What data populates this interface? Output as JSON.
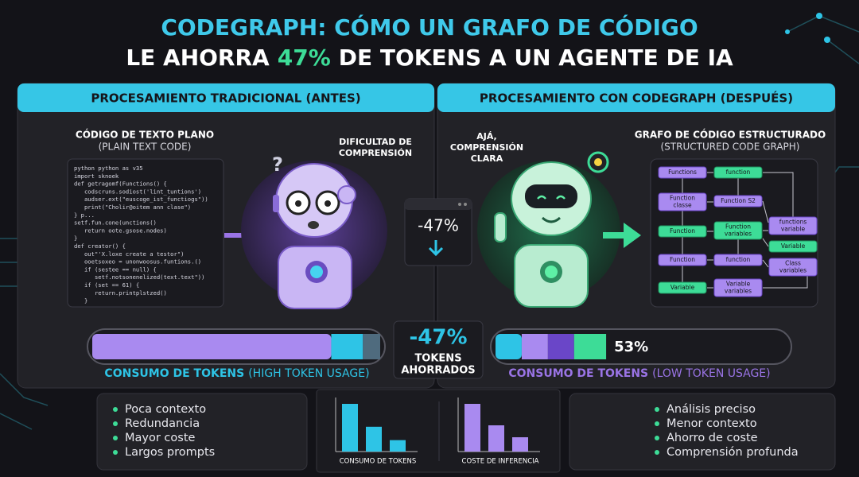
{
  "title": {
    "line1": "CODEGRAPH: CÓMO UN GRAFO DE CÓDIGO",
    "line2": [
      "LE AHORRA",
      "47%",
      "DE TOKENS A UN AGENTE DE IA"
    ]
  },
  "before": {
    "header": "PROCESAMIENTO TRADICIONAL (ANTES)",
    "code_title": "CÓDIGO DE TEXTO PLANO",
    "code_subtitle": "(PLAIN TEXT CODE)",
    "code_lines": [
      "python python as v35",
      "import sknoek",
      "def getragomf(Functions() {",
      "   codscruns.sodiost('lint_tuntions')",
      "   audser.ext(\"euscoge_ist_functiogs\"))",
      "   print(\"Cholir@oitem ann clase\")",
      "} p...",
      "setf.fun.cone(unctions()",
      "   return oote.gsose.nodes)",
      "}",
      "def creator() {",
      "   out\"'X.loxe create a testor\")",
      "   ooetsoxeo = unonwoosus.funtions.()",
      "   if (sestee == null) {",
      "      setf.notsonenelized(text.text\"))",
      "   if (set == 61) {",
      "      return.printplstzed()",
      "   }"
    ],
    "thought": [
      "DIFICULTAD DE",
      "COMPRENSIÓN"
    ],
    "question_mark": "?",
    "token_bar": {
      "segments": [
        83,
        11,
        6
      ],
      "colors": [
        "#a98af0",
        "#2ec4e6",
        "#4f6b7e"
      ]
    },
    "token_label": "CONSUMO DE TOKENS",
    "token_note": "(HIGH TOKEN USAGE)",
    "bullets": [
      "Poca contexto",
      "Redundancia",
      "Mayor coste",
      "Largos prompts"
    ]
  },
  "center": {
    "arrow_text": "-47%",
    "saved": [
      "-47%",
      "TOKENS",
      "AHORRADOS"
    ]
  },
  "after": {
    "header": "PROCESAMIENTO CON CODEGRAPH (DESPUÉS)",
    "thought": [
      "AJÁ,",
      "COMPRENSIÓN",
      "CLARA"
    ],
    "graph_title": "GRAFO DE CÓDIGO ESTRUCTURADO",
    "graph_subtitle": "(STRUCTURED CODE GRAPH)",
    "nodes": [
      [
        "Functions"
      ],
      [
        "function"
      ],
      [
        "Function",
        "classe"
      ],
      [
        "Function S2"
      ],
      [
        "functions",
        "variable"
      ],
      [
        "Function"
      ],
      [
        "Function",
        "variables"
      ],
      [
        "Variable"
      ],
      [
        "Function"
      ],
      [
        "function"
      ],
      [
        "Class",
        "variables"
      ],
      [
        "Variable"
      ],
      [
        "Variable",
        "variables"
      ]
    ],
    "token_bar": {
      "segments": [
        9,
        9,
        9,
        11
      ],
      "colors": [
        "#2ec4e6",
        "#a98af0",
        "#6a46c8",
        "#3ddc97"
      ]
    },
    "percent_text": "53%",
    "token_label": "CONSUMO DE TOKENS",
    "token_note": "(LOW TOKEN USAGE)",
    "bullets": [
      "Análisis preciso",
      "Menor contexto",
      "Ahorro de coste",
      "Comprensión profunda"
    ]
  },
  "mini_charts": [
    {
      "label": "CONSUMO DE TOKENS",
      "values": [
        100,
        52,
        24
      ],
      "color": "#2ec4e6"
    },
    {
      "label": "COSTE DE INFERENCIA",
      "values": [
        100,
        55,
        30
      ],
      "color": "#a98af0"
    }
  ]
}
